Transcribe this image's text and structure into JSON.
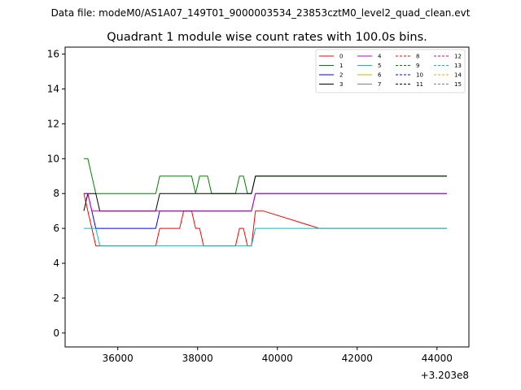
{
  "chart_data": {
    "type": "line",
    "suptitle": "Data file: modeM0/AS1A07_149T01_9000003534_23853cztM0_level2_quad_clean.evt",
    "title": "Quadrant 1 module wise count rates with 100.0s bins.",
    "xlabel": "",
    "ylabel": "",
    "x_offset_label": "+3.203e8",
    "xlim": [
      34680,
      44800
    ],
    "ylim": [
      -0.8,
      16.4
    ],
    "x_ticks": [
      36000,
      38000,
      40000,
      42000,
      44000
    ],
    "y_ticks": [
      0,
      2,
      4,
      6,
      8,
      10,
      12,
      14,
      16
    ],
    "segments": [
      {
        "start": 35150,
        "n": 7
      },
      {
        "start": 36850,
        "n": 29
      },
      {
        "start": 41050,
        "n": 3
      },
      {
        "start": 43050,
        "n": 13
      }
    ],
    "series": [
      {
        "name": "0",
        "color": "#ff0000",
        "dash": false,
        "base": [
          8,
          7,
          6,
          5,
          5,
          5,
          5,
          5,
          5,
          6,
          6,
          6,
          6,
          6,
          6,
          7,
          7,
          7,
          6,
          6,
          5,
          5,
          5,
          5,
          5,
          5,
          5,
          5,
          5,
          6,
          6,
          5,
          5,
          7,
          7,
          7,
          6,
          6,
          6,
          6,
          6,
          6,
          6,
          6,
          6,
          6,
          6,
          6,
          6,
          6,
          6,
          6,
          6
        ]
      },
      {
        "name": "1",
        "color": "#008000",
        "dash": false,
        "base": [
          10,
          10,
          9,
          8,
          8,
          8,
          8,
          8,
          8,
          9,
          9,
          9,
          9,
          9,
          9,
          9,
          9,
          9,
          8,
          9,
          9,
          9,
          8,
          8,
          8,
          8,
          8,
          8,
          8,
          9,
          9,
          8,
          8,
          9,
          9,
          9,
          9,
          9,
          9,
          9,
          9,
          9,
          9,
          9,
          9,
          9,
          9,
          9,
          9,
          9,
          9,
          9,
          9
        ]
      },
      {
        "name": "2",
        "color": "#0000ff",
        "dash": false,
        "base": [
          8,
          8,
          7,
          6,
          6,
          6,
          6,
          6,
          6,
          7,
          7,
          7,
          7,
          7,
          7,
          7,
          7,
          7,
          7,
          7,
          7,
          7,
          7,
          7,
          7,
          7,
          7,
          7,
          7,
          7,
          7,
          7,
          7,
          8,
          8,
          8,
          8,
          8,
          8,
          8,
          8,
          8,
          8,
          8,
          8,
          8,
          8,
          8,
          8,
          8,
          8,
          8,
          8
        ]
      },
      {
        "name": "3",
        "color": "#000000",
        "dash": false,
        "base": [
          7,
          8,
          8,
          8,
          7,
          7,
          7,
          7,
          7,
          8,
          8,
          8,
          8,
          8,
          8,
          8,
          8,
          8,
          8,
          8,
          8,
          8,
          8,
          8,
          8,
          8,
          8,
          8,
          8,
          8,
          8,
          8,
          8,
          9,
          9,
          9,
          9,
          9,
          9,
          9,
          9,
          9,
          9,
          9,
          9,
          9,
          9,
          9,
          9,
          9,
          9,
          9,
          9
        ]
      },
      {
        "name": "4",
        "color": "#bf00bf",
        "dash": false,
        "base": [
          8,
          8,
          7,
          7,
          7,
          7,
          7,
          7,
          7,
          7,
          7,
          7,
          7,
          7,
          7,
          7,
          7,
          7,
          7,
          7,
          7,
          7,
          7,
          7,
          7,
          7,
          7,
          7,
          7,
          7,
          7,
          7,
          7,
          8,
          8,
          8,
          8,
          8,
          8,
          8,
          8,
          8,
          8,
          8,
          8,
          8,
          8,
          8,
          8,
          8,
          8,
          8,
          8
        ]
      },
      {
        "name": "5",
        "color": "#00bfbf",
        "dash": false,
        "base": [
          6,
          6,
          6,
          6,
          5,
          5,
          5,
          5,
          5,
          5,
          5,
          5,
          5,
          5,
          5,
          5,
          5,
          5,
          5,
          5,
          5,
          5,
          5,
          5,
          5,
          5,
          5,
          5,
          5,
          5,
          5,
          5,
          5,
          6,
          6,
          6,
          6,
          6,
          6,
          6,
          6,
          6,
          6,
          6,
          6,
          6,
          6,
          6,
          6,
          6,
          6,
          6,
          6
        ]
      }
    ],
    "legend": {
      "placement": "top-right",
      "entries": [
        {
          "label": "0",
          "color": "#ff0000",
          "dash": false
        },
        {
          "label": "1",
          "color": "#008000",
          "dash": false
        },
        {
          "label": "2",
          "color": "#0000ff",
          "dash": false
        },
        {
          "label": "3",
          "color": "#000000",
          "dash": false
        },
        {
          "label": "4",
          "color": "#bf00bf",
          "dash": false
        },
        {
          "label": "5",
          "color": "#00bfbf",
          "dash": false
        },
        {
          "label": "6",
          "color": "#bfbf00",
          "dash": false
        },
        {
          "label": "7",
          "color": "#808080",
          "dash": false
        },
        {
          "label": "8",
          "color": "#ff0000",
          "dash": true
        },
        {
          "label": "9",
          "color": "#008000",
          "dash": true
        },
        {
          "label": "10",
          "color": "#0000ff",
          "dash": true
        },
        {
          "label": "11",
          "color": "#000000",
          "dash": true
        },
        {
          "label": "12",
          "color": "#bf00bf",
          "dash": true
        },
        {
          "label": "13",
          "color": "#00bfbf",
          "dash": true
        },
        {
          "label": "14",
          "color": "#bfbf00",
          "dash": true
        },
        {
          "label": "15",
          "color": "#808080",
          "dash": true
        }
      ]
    }
  }
}
